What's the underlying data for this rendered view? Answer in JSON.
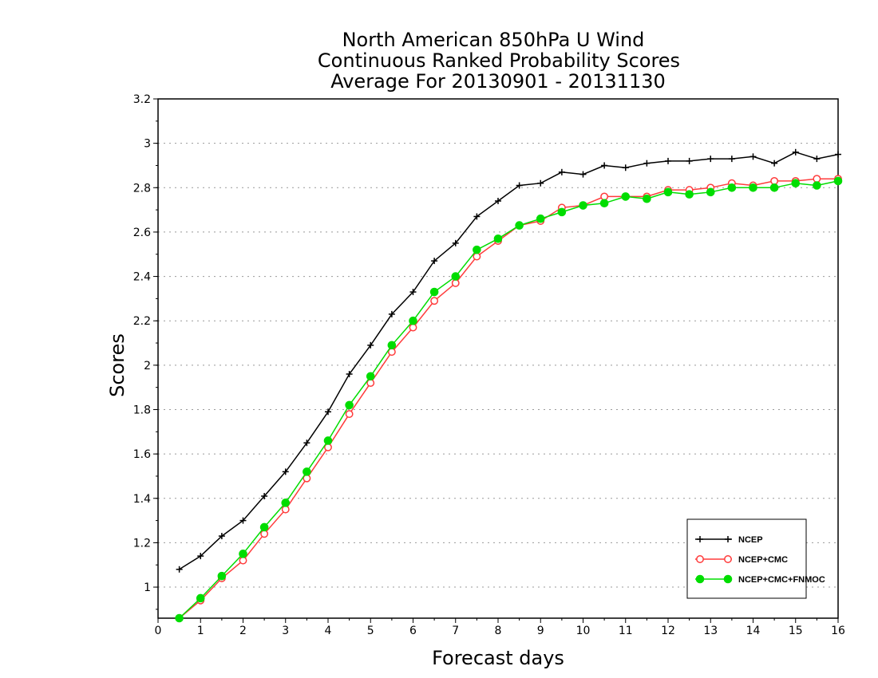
{
  "chart_data": {
    "type": "line",
    "title": [
      "North American 850hPa U Wind",
      "Continuous Ranked Probability Scores",
      "Average For 20130901 - 20131130"
    ],
    "xlabel": "Forecast days",
    "ylabel": "Scores",
    "xlim": [
      0,
      16
    ],
    "ylim": [
      0.86,
      3.2
    ],
    "xticks": [
      0,
      1,
      2,
      3,
      4,
      5,
      6,
      7,
      8,
      9,
      10,
      11,
      12,
      13,
      14,
      15,
      16
    ],
    "yticks": [
      1,
      1.2,
      1.4,
      1.6,
      1.8,
      2,
      2.2,
      2.4,
      2.6,
      2.8,
      3,
      3.2
    ],
    "grid": "horizontal dotted",
    "legend_position": "bottom-right",
    "x": [
      0.5,
      1,
      1.5,
      2,
      2.5,
      3,
      3.5,
      4,
      4.5,
      5,
      5.5,
      6,
      6.5,
      7,
      7.5,
      8,
      8.5,
      9,
      9.5,
      10,
      10.5,
      11,
      11.5,
      12,
      12.5,
      13,
      13.5,
      14,
      14.5,
      15,
      15.5,
      16
    ],
    "series": [
      {
        "name": "NCEP",
        "color": "#000000",
        "marker": "plus",
        "values": [
          1.08,
          1.14,
          1.23,
          1.3,
          1.41,
          1.52,
          1.65,
          1.79,
          1.96,
          2.09,
          2.23,
          2.33,
          2.47,
          2.55,
          2.67,
          2.74,
          2.81,
          2.82,
          2.87,
          2.86,
          2.9,
          2.89,
          2.91,
          2.92,
          2.92,
          2.93,
          2.93,
          2.94,
          2.91,
          2.96,
          2.93,
          2.95
        ]
      },
      {
        "name": "NCEP+CMC",
        "color": "#ff3b3b",
        "marker": "open-circle",
        "values": [
          0.86,
          0.94,
          1.04,
          1.12,
          1.24,
          1.35,
          1.49,
          1.63,
          1.78,
          1.92,
          2.06,
          2.17,
          2.29,
          2.37,
          2.49,
          2.56,
          2.63,
          2.65,
          2.71,
          2.72,
          2.76,
          2.76,
          2.76,
          2.79,
          2.79,
          2.8,
          2.82,
          2.81,
          2.83,
          2.83,
          2.84,
          2.84
        ]
      },
      {
        "name": "NCEP+CMC+FNMOC",
        "color": "#00dd00",
        "marker": "filled-circle",
        "values": [
          0.86,
          0.95,
          1.05,
          1.15,
          1.27,
          1.38,
          1.52,
          1.66,
          1.82,
          1.95,
          2.09,
          2.2,
          2.33,
          2.4,
          2.52,
          2.57,
          2.63,
          2.66,
          2.69,
          2.72,
          2.73,
          2.76,
          2.75,
          2.78,
          2.77,
          2.78,
          2.8,
          2.8,
          2.8,
          2.82,
          2.81,
          2.83
        ]
      }
    ]
  }
}
